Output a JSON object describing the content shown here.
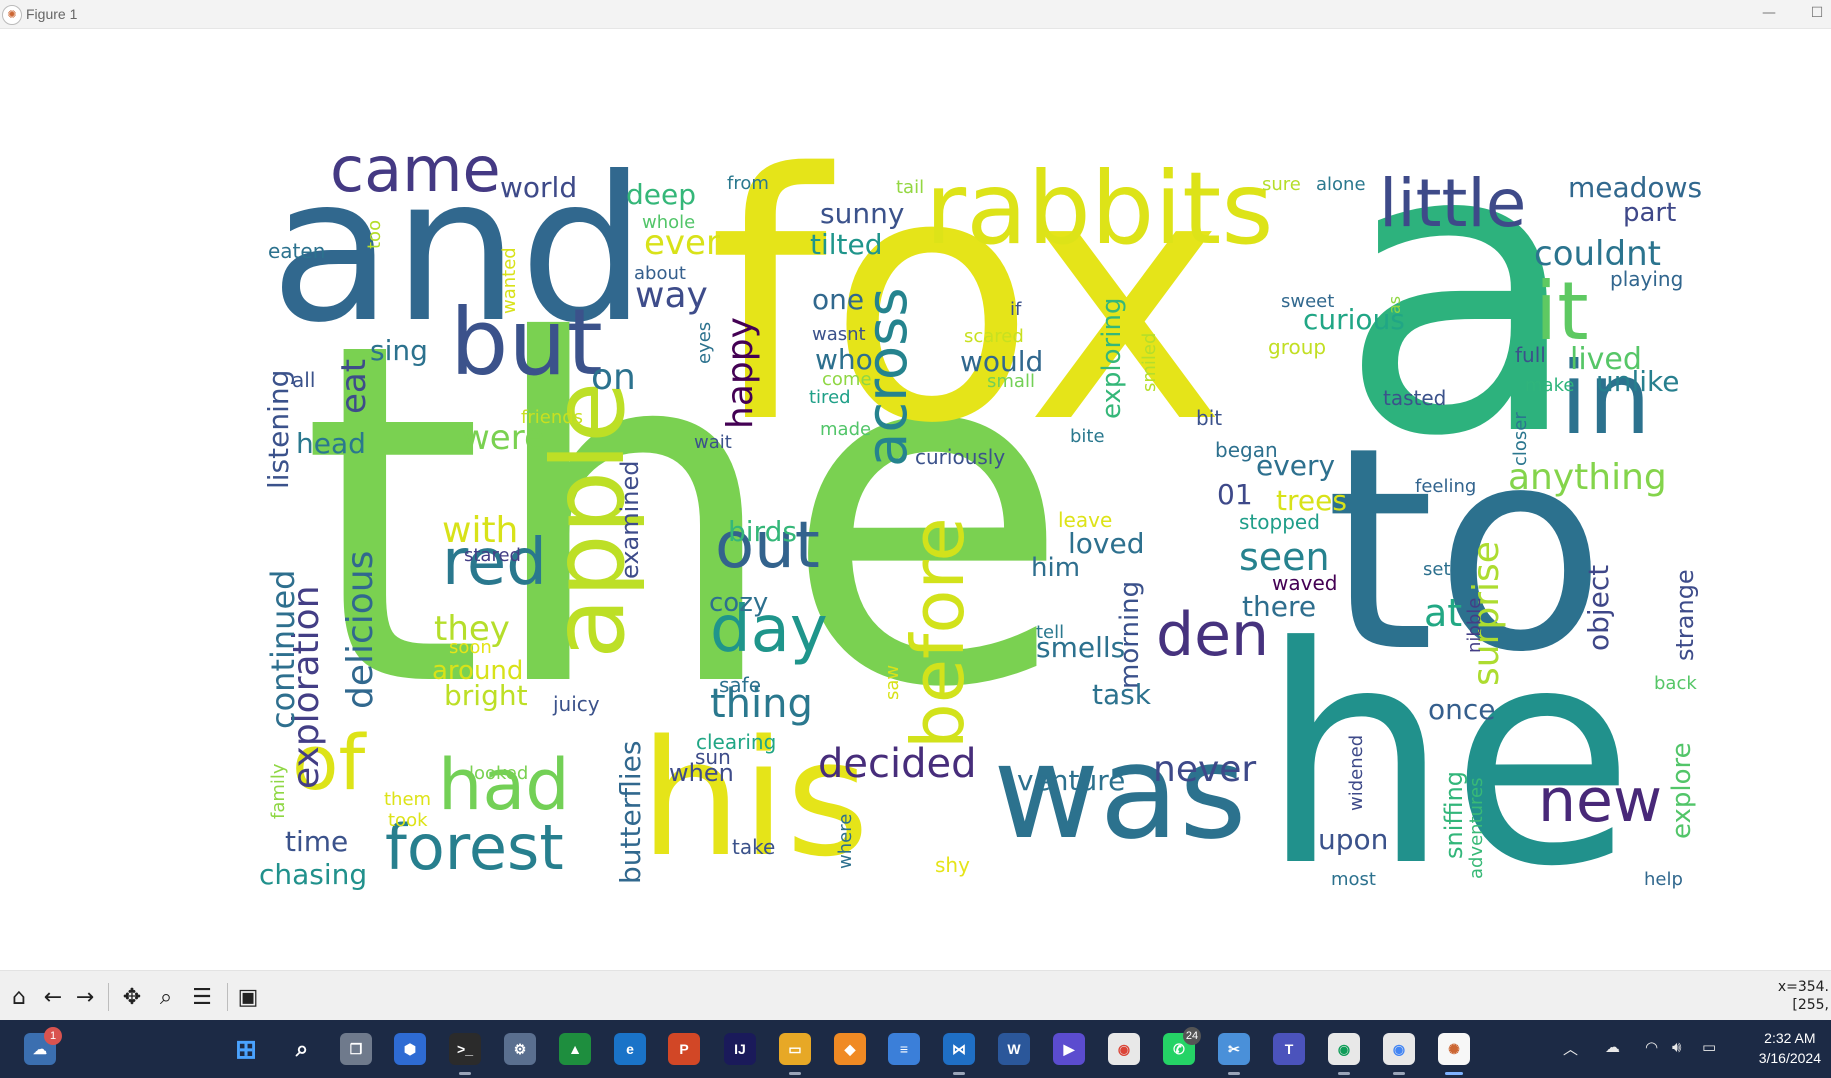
{
  "window": {
    "title": "Figure 1",
    "minimize_icon": "minimize-icon",
    "maximize_icon": "maximize-icon"
  },
  "wordcloud": {
    "colormap": "viridis",
    "background": "#ffffff",
    "words": [
      {
        "text": "the",
        "color": "#7ad151"
      },
      {
        "text": "fox",
        "color": "#e5e419"
      },
      {
        "text": "a",
        "color": "#2db27d"
      },
      {
        "text": "to",
        "color": "#2c718e"
      },
      {
        "text": "he",
        "color": "#21918c"
      },
      {
        "text": "and",
        "color": "#31688e"
      },
      {
        "text": "his",
        "color": "#e5e419"
      },
      {
        "text": "was",
        "color": "#2c728e"
      },
      {
        "text": "rabbits",
        "color": "#dde318"
      },
      {
        "text": "apple",
        "color": "#bddf26"
      },
      {
        "text": "but",
        "color": "#3b528b"
      },
      {
        "text": "came",
        "color": "#443983"
      },
      {
        "text": "little",
        "color": "#3e4a89"
      },
      {
        "text": "in",
        "color": "#2c728e"
      },
      {
        "text": "it",
        "color": "#5ec962"
      },
      {
        "text": "of",
        "color": "#dde318"
      },
      {
        "text": "had",
        "color": "#73d056"
      },
      {
        "text": "forest",
        "color": "#277f8e"
      },
      {
        "text": "before",
        "color": "#d2e21b"
      },
      {
        "text": "across",
        "color": "#25838e"
      },
      {
        "text": "out",
        "color": "#33638d"
      },
      {
        "text": "day",
        "color": "#1f958b"
      },
      {
        "text": "red",
        "color": "#2a788e"
      },
      {
        "text": "den",
        "color": "#46327e"
      },
      {
        "text": "new",
        "color": "#482878"
      },
      {
        "text": "decided",
        "color": "#472d7b"
      },
      {
        "text": "never",
        "color": "#3e4989"
      },
      {
        "text": "thing",
        "color": "#2a788e"
      },
      {
        "text": "surprise",
        "color": "#addc30"
      },
      {
        "text": "anything",
        "color": "#84d44b"
      },
      {
        "text": "exploration",
        "color": "#433e85"
      },
      {
        "text": "delicious",
        "color": "#31688e"
      },
      {
        "text": "continued",
        "color": "#2e6f8e"
      },
      {
        "text": "listening",
        "color": "#3b528b"
      },
      {
        "text": "butterflies",
        "color": "#31688e"
      },
      {
        "text": "examined",
        "color": "#3e4c8a"
      },
      {
        "text": "happy",
        "color": "#440154"
      },
      {
        "text": "exploring",
        "color": "#35b779"
      },
      {
        "text": "morning",
        "color": "#3b518b"
      },
      {
        "text": "object",
        "color": "#3f4788"
      },
      {
        "text": "strange",
        "color": "#3e4c8a"
      },
      {
        "text": "explore",
        "color": "#52c569"
      },
      {
        "text": "sniffing",
        "color": "#32b67a"
      },
      {
        "text": "adventures",
        "color": "#38b977"
      },
      {
        "text": "widened",
        "color": "#3e4a89"
      },
      {
        "text": "closer",
        "color": "#2a768e"
      },
      {
        "text": "nibble",
        "color": "#433e85"
      },
      {
        "text": "couldnt",
        "color": "#2b748e"
      },
      {
        "text": "meadows",
        "color": "#31688e"
      },
      {
        "text": "part",
        "color": "#3f4889"
      },
      {
        "text": "playing",
        "color": "#31668e"
      },
      {
        "text": "lived",
        "color": "#56c667"
      },
      {
        "text": "unlike",
        "color": "#277f8e"
      },
      {
        "text": "full",
        "color": "#3b518b"
      },
      {
        "text": "make",
        "color": "#2fb47c"
      },
      {
        "text": "tasted",
        "color": "#3b528b"
      },
      {
        "text": "sweet",
        "color": "#31688e"
      },
      {
        "text": "as",
        "color": "#90d743"
      },
      {
        "text": "curious",
        "color": "#21a685"
      },
      {
        "text": "group",
        "color": "#c2df23"
      },
      {
        "text": "alone",
        "color": "#2a788e"
      },
      {
        "text": "sure",
        "color": "#b5de2b"
      },
      {
        "text": "every",
        "color": "#2d708e"
      },
      {
        "text": "trees",
        "color": "#d8e219"
      },
      {
        "text": "seen",
        "color": "#26828e"
      },
      {
        "text": "there",
        "color": "#2e6e8e"
      },
      {
        "text": "at",
        "color": "#22a884"
      },
      {
        "text": "once",
        "color": "#355f8d"
      },
      {
        "text": "upon",
        "color": "#3b528b"
      },
      {
        "text": "most",
        "color": "#2c718e"
      },
      {
        "text": "help",
        "color": "#31688e"
      },
      {
        "text": "back",
        "color": "#56c667"
      },
      {
        "text": "set",
        "color": "#2d708e"
      },
      {
        "text": "waved",
        "color": "#440154"
      },
      {
        "text": "stopped",
        "color": "#1f9e89"
      },
      {
        "text": "feeling",
        "color": "#32648e"
      },
      {
        "text": "01",
        "color": "#3e4989"
      },
      {
        "text": "began",
        "color": "#2d708e"
      },
      {
        "text": "bit",
        "color": "#3b528b"
      },
      {
        "text": "bite",
        "color": "#2a788e"
      },
      {
        "text": "smiled",
        "color": "#b5de2b"
      },
      {
        "text": "scared",
        "color": "#c8e020"
      },
      {
        "text": "small",
        "color": "#73d056"
      },
      {
        "text": "would",
        "color": "#31688e"
      },
      {
        "text": "if",
        "color": "#3b528b"
      },
      {
        "text": "curiously",
        "color": "#3b528b"
      },
      {
        "text": "loved",
        "color": "#2d708e"
      },
      {
        "text": "leave",
        "color": "#dde318"
      },
      {
        "text": "him",
        "color": "#2e6e8e"
      },
      {
        "text": "tell",
        "color": "#2a788e"
      },
      {
        "text": "smells",
        "color": "#2c718e"
      },
      {
        "text": "task",
        "color": "#2c728e"
      },
      {
        "text": "venture",
        "color": "#2c718e"
      },
      {
        "text": "saw",
        "color": "#d8e219"
      },
      {
        "text": "shy",
        "color": "#e5e419"
      },
      {
        "text": "take",
        "color": "#3b528b"
      },
      {
        "text": "where",
        "color": "#2d708e"
      },
      {
        "text": "when",
        "color": "#3e4c8a"
      },
      {
        "text": "sun",
        "color": "#3e4c8a"
      },
      {
        "text": "clearing",
        "color": "#21a685"
      },
      {
        "text": "safe",
        "color": "#2c718e"
      },
      {
        "text": "cozy",
        "color": "#2d708e"
      },
      {
        "text": "birds",
        "color": "#35b779"
      },
      {
        "text": "juicy",
        "color": "#3b528b"
      },
      {
        "text": "wait",
        "color": "#3b528b"
      },
      {
        "text": "made",
        "color": "#52c569"
      },
      {
        "text": "tired",
        "color": "#1fa088"
      },
      {
        "text": "come",
        "color": "#8fd744"
      },
      {
        "text": "wasnt",
        "color": "#3b528b"
      },
      {
        "text": "who",
        "color": "#2d708e"
      },
      {
        "text": "one",
        "color": "#31688e"
      },
      {
        "text": "eyes",
        "color": "#2c728e"
      },
      {
        "text": "about",
        "color": "#355f8d"
      },
      {
        "text": "whole",
        "color": "#52c569"
      },
      {
        "text": "from",
        "color": "#2a788e"
      },
      {
        "text": "tail",
        "color": "#93d741"
      },
      {
        "text": "sunny",
        "color": "#3b528b"
      },
      {
        "text": "tilted",
        "color": "#1f958b"
      },
      {
        "text": "ever",
        "color": "#d8e219"
      },
      {
        "text": "way",
        "color": "#3e4c8a"
      },
      {
        "text": "deep",
        "color": "#35b779"
      },
      {
        "text": "world",
        "color": "#3e4a89"
      },
      {
        "text": "on",
        "color": "#2c728e"
      },
      {
        "text": "were",
        "color": "#7ad151"
      },
      {
        "text": "with",
        "color": "#d8e219"
      },
      {
        "text": "they",
        "color": "#b5de2b"
      },
      {
        "text": "stared",
        "color": "#433e85"
      },
      {
        "text": "soon",
        "color": "#e5e419"
      },
      {
        "text": "around",
        "color": "#d8e219"
      },
      {
        "text": "bright",
        "color": "#bddf26"
      },
      {
        "text": "sing",
        "color": "#2c728e"
      },
      {
        "text": "eat",
        "color": "#3e4c8a"
      },
      {
        "text": "all",
        "color": "#3b528b"
      },
      {
        "text": "head",
        "color": "#2a788e"
      },
      {
        "text": "eaten",
        "color": "#2c728e"
      },
      {
        "text": "too",
        "color": "#b5de2b"
      },
      {
        "text": "wanted",
        "color": "#d8e219"
      },
      {
        "text": "friends",
        "color": "#c8e020"
      },
      {
        "text": "time",
        "color": "#3b528b"
      },
      {
        "text": "chasing",
        "color": "#21918c"
      },
      {
        "text": "family",
        "color": "#8fd744"
      },
      {
        "text": "looked",
        "color": "#7ad151"
      },
      {
        "text": "them",
        "color": "#dde318"
      },
      {
        "text": "took",
        "color": "#dde318"
      }
    ]
  },
  "toolbar": {
    "buttons": [
      {
        "name": "home-icon",
        "glyph": "⌂"
      },
      {
        "name": "back-arrow-icon",
        "glyph": "←"
      },
      {
        "name": "forward-arrow-icon",
        "glyph": "→"
      },
      {
        "name": "pan-icon",
        "glyph": "✥"
      },
      {
        "name": "zoom-icon",
        "glyph": "⌕"
      },
      {
        "name": "configure-subplots-icon",
        "glyph": "☰"
      },
      {
        "name": "save-icon",
        "glyph": "💾"
      }
    ],
    "coord_line1": "x=354.",
    "coord_line2": "[255,"
  },
  "taskbar": {
    "weather_badge": "1",
    "whatsapp_badge": "24",
    "clock_time": "2:32 AM",
    "clock_date": "3/16/2024"
  }
}
